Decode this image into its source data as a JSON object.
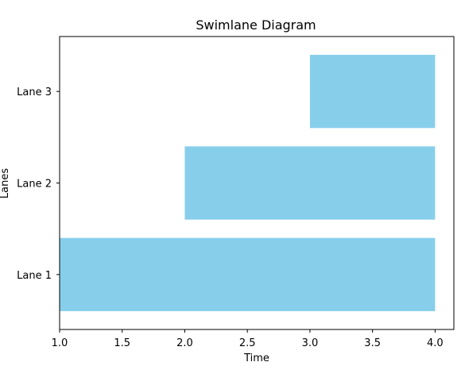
{
  "chart_data": {
    "type": "bar",
    "orientation": "horizontal",
    "title": "Swimlane Diagram",
    "xlabel": "Time",
    "ylabel": "Lanes",
    "categories": [
      "Lane 1",
      "Lane 2",
      "Lane 3"
    ],
    "bars": [
      {
        "lane": "Lane 1",
        "start": 1.0,
        "end": 4.0
      },
      {
        "lane": "Lane 2",
        "start": 2.0,
        "end": 4.0
      },
      {
        "lane": "Lane 3",
        "start": 3.0,
        "end": 4.0
      }
    ],
    "xlim": [
      1.0,
      4.15
    ],
    "xticks": [
      "1.0",
      "1.5",
      "2.0",
      "2.5",
      "3.0",
      "3.5",
      "4.0"
    ],
    "bar_color": "#87ceeb",
    "grid": false,
    "legend": "none"
  }
}
